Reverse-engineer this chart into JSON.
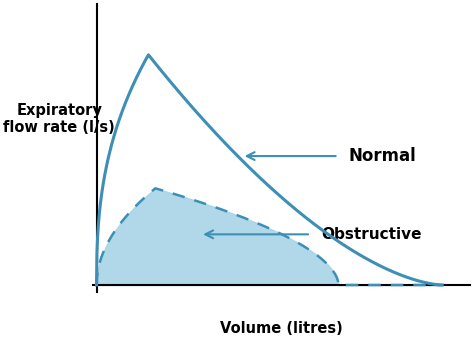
{
  "background_color": "#ffffff",
  "curve_color": "#3d8fb5",
  "fill_color": "#a8d4e6",
  "ylabel": "Expiratory\nflow rate (l/s)",
  "xlabel": "Volume (litres)",
  "label_normal": "Normal",
  "label_obstructive": "Obstructive",
  "figsize": [
    4.74,
    3.37
  ],
  "dpi": 100
}
